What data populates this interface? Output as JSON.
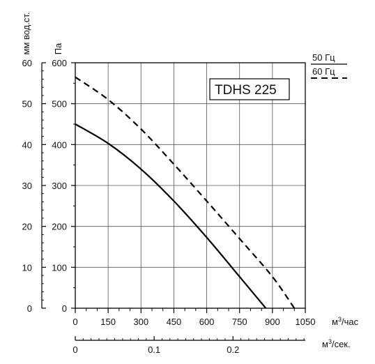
{
  "chart_data": {
    "type": "line",
    "title": "TDHS 225",
    "x": {
      "label": "м³/час",
      "ticks": [
        0,
        150,
        300,
        450,
        600,
        750,
        900,
        1050
      ],
      "range": [
        0,
        1050
      ]
    },
    "x2": {
      "label": "м³/сек.",
      "ticks": [
        0,
        0.1,
        0.2
      ],
      "range": [
        0,
        0.2917
      ]
    },
    "y": {
      "label": "Па",
      "ticks": [
        0,
        100,
        200,
        300,
        400,
        500,
        600
      ],
      "range": [
        0,
        600
      ]
    },
    "y2": {
      "label": "мм вод.ст.",
      "ticks": [
        0,
        10,
        20,
        30,
        40,
        50,
        60
      ],
      "range": [
        0,
        60
      ]
    },
    "grid": true,
    "legend_position": "top-right",
    "series": [
      {
        "name": "50 Гц",
        "style": "solid",
        "color": "#000000",
        "points": [
          [
            0,
            450
          ],
          [
            150,
            403
          ],
          [
            300,
            340
          ],
          [
            450,
            262
          ],
          [
            600,
            173
          ],
          [
            750,
            77
          ],
          [
            870,
            0
          ]
        ]
      },
      {
        "name": "60 Гц",
        "style": "dashed",
        "color": "#000000",
        "points": [
          [
            0,
            565
          ],
          [
            150,
            510
          ],
          [
            300,
            438
          ],
          [
            450,
            352
          ],
          [
            600,
            262
          ],
          [
            750,
            170
          ],
          [
            900,
            77
          ],
          [
            1000,
            0
          ]
        ]
      }
    ]
  }
}
